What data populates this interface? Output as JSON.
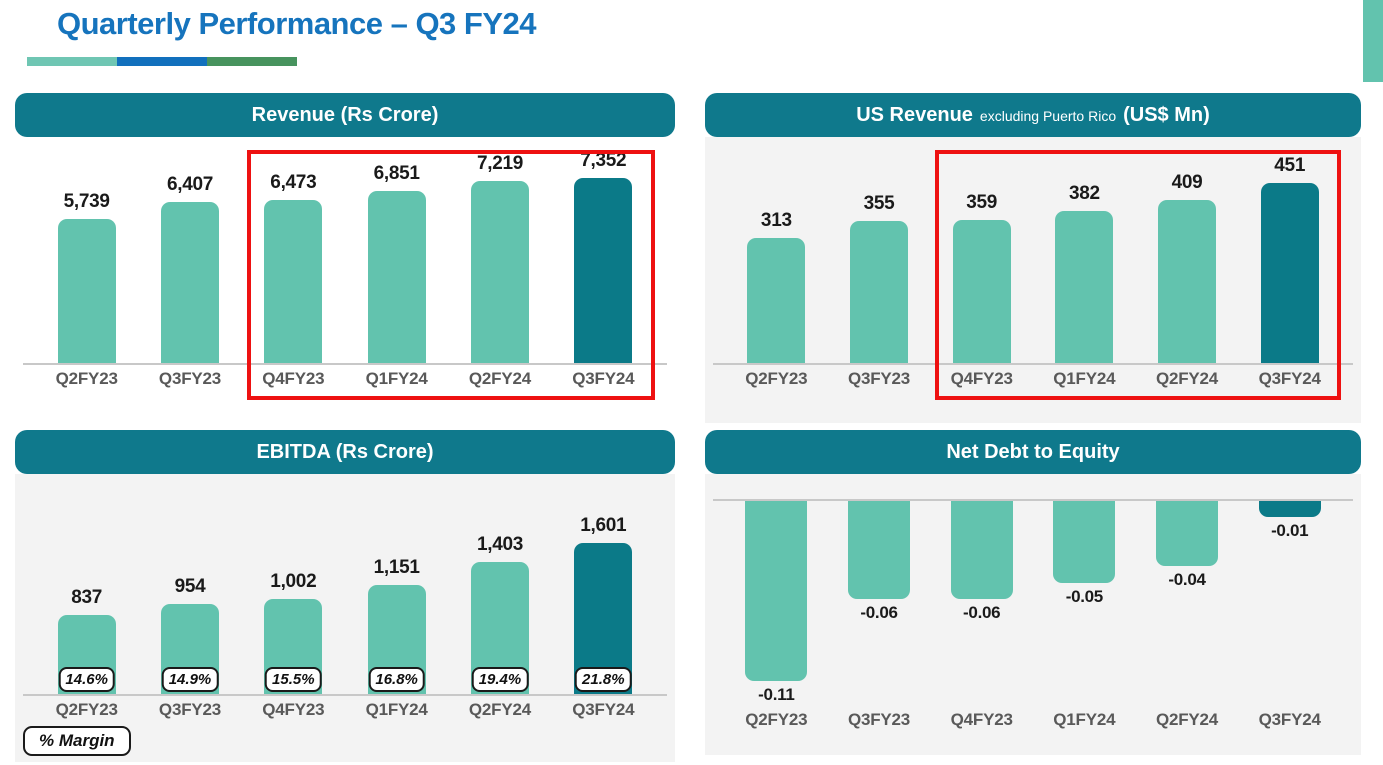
{
  "page": {
    "title": "Quarterly Performance – Q3 FY24"
  },
  "colors": {
    "bar_teal": "#62c3ae",
    "bar_dark_teal": "#0b7a88",
    "header_teal": "#0f798c",
    "title_blue": "#1674bd",
    "highlight_red": "#ee1111",
    "panel_gray": "#f3f3f3",
    "underline_teal": "#6fc6b3",
    "underline_blue": "#1170bd",
    "underline_green": "#47935e"
  },
  "chart_data": [
    {
      "id": "revenue",
      "type": "bar",
      "title": "Revenue (Rs Crore)",
      "categories": [
        "Q2FY23",
        "Q3FY23",
        "Q4FY23",
        "Q1FY24",
        "Q2FY24",
        "Q3FY24"
      ],
      "values": [
        5739,
        6407,
        6473,
        6851,
        7219,
        7352
      ],
      "value_labels": [
        "5,739",
        "6,407",
        "6,473",
        "6,851",
        "7,219",
        "7,352"
      ],
      "ylim": [
        0,
        7352
      ],
      "highlight_index": 5,
      "highlight_box_from_index": 2,
      "grid": false,
      "legend_position": "none"
    },
    {
      "id": "us-revenue",
      "type": "bar",
      "title_parts": {
        "bold_1": "US Revenue",
        "small": "excluding Puerto Rico",
        "bold_2": "(US$ Mn)"
      },
      "categories": [
        "Q2FY23",
        "Q3FY23",
        "Q4FY23",
        "Q1FY24",
        "Q2FY24",
        "Q3FY24"
      ],
      "values": [
        313,
        355,
        359,
        382,
        409,
        451
      ],
      "value_labels": [
        "313",
        "355",
        "359",
        "382",
        "409",
        "451"
      ],
      "ylim": [
        0,
        451
      ],
      "highlight_index": 5,
      "highlight_box_from_index": 2,
      "grid": false,
      "legend_position": "none"
    },
    {
      "id": "ebitda",
      "type": "bar",
      "title": "EBITDA (Rs Crore)",
      "categories": [
        "Q2FY23",
        "Q3FY23",
        "Q4FY23",
        "Q1FY24",
        "Q2FY24",
        "Q3FY24"
      ],
      "values": [
        837,
        954,
        1002,
        1151,
        1403,
        1601
      ],
      "value_labels": [
        "837",
        "954",
        "1,002",
        "1,151",
        "1,403",
        "1,601"
      ],
      "margin_labels": [
        "14.6%",
        "14.9%",
        "15.5%",
        "16.8%",
        "19.4%",
        "21.8%"
      ],
      "legend_label": "% Margin",
      "ylim": [
        0,
        1601
      ],
      "highlight_index": 5,
      "grid": false,
      "legend_position": "bottom-left"
    },
    {
      "id": "net-debt",
      "type": "bar",
      "title": "Net Debt to Equity",
      "categories": [
        "Q2FY23",
        "Q3FY23",
        "Q4FY23",
        "Q1FY24",
        "Q2FY24",
        "Q3FY24"
      ],
      "values": [
        -0.11,
        -0.06,
        -0.06,
        -0.05,
        -0.04,
        -0.01
      ],
      "value_labels": [
        "-0.11",
        "-0.06",
        "-0.06",
        "-0.05",
        "-0.04",
        "-0.01"
      ],
      "ylim": [
        -0.11,
        0
      ],
      "highlight_index": 5,
      "grid": false,
      "legend_position": "none"
    }
  ]
}
